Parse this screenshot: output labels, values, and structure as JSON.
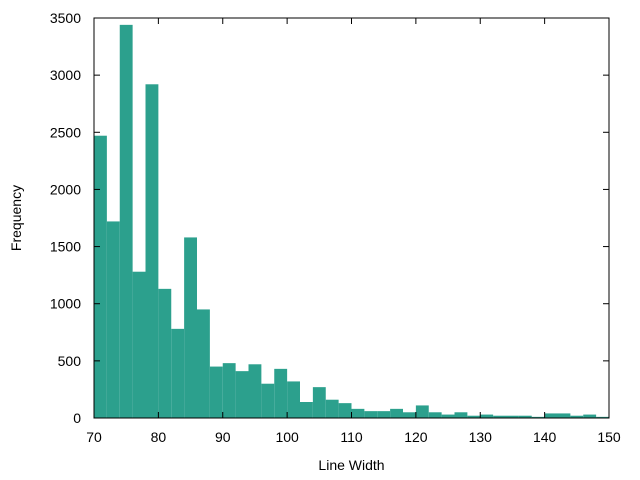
{
  "chart_data": {
    "type": "bar",
    "title": "",
    "xlabel": "Line Width",
    "ylabel": "Frequency",
    "xlim": [
      70,
      150
    ],
    "ylim": [
      0,
      3500
    ],
    "xticks": [
      70,
      80,
      90,
      100,
      110,
      120,
      130,
      140,
      150
    ],
    "yticks": [
      0,
      500,
      1000,
      1500,
      2000,
      2500,
      3000,
      3500
    ],
    "grid": false,
    "legend": "none",
    "bar_color": "#2ca08d",
    "bin_width": 2,
    "bins_start": [
      70,
      72,
      74,
      76,
      78,
      80,
      82,
      84,
      86,
      88,
      90,
      92,
      94,
      96,
      98,
      100,
      102,
      104,
      106,
      108,
      110,
      112,
      114,
      116,
      118,
      120,
      122,
      124,
      126,
      128,
      130,
      132,
      134,
      136,
      138,
      140,
      142,
      144,
      146,
      148
    ],
    "values": [
      2470,
      1720,
      3440,
      1280,
      2920,
      1130,
      780,
      1580,
      950,
      450,
      480,
      410,
      470,
      300,
      430,
      320,
      140,
      270,
      160,
      130,
      80,
      60,
      60,
      80,
      50,
      110,
      50,
      30,
      50,
      20,
      30,
      20,
      20,
      20,
      10,
      40,
      40,
      20,
      30,
      10
    ]
  }
}
